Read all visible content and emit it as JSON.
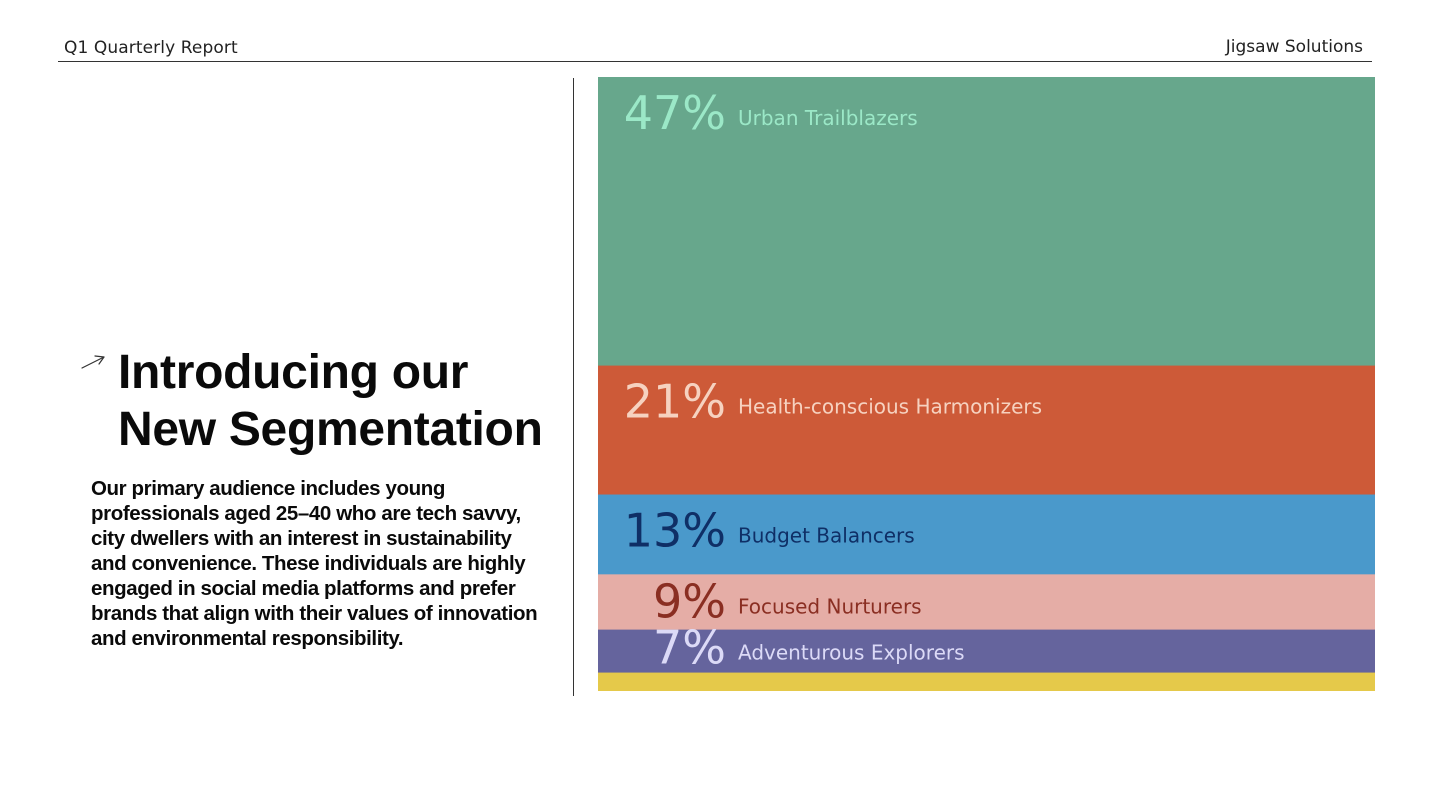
{
  "header": {
    "report_title": "Q1 Quarterly Report",
    "company": "Jigsaw Solutions"
  },
  "intro": {
    "headline_line1": "Introducing our",
    "headline_line2": "New Segmentation",
    "body": "Our primary audience includes young professionals aged 25–40 who are tech savvy, city dwellers with an interest in sustainability and convenience. These individuals are highly engaged in social media platforms and prefer brands that align with their values of innovation and environmental responsibility.",
    "icon": "arrow-up-right-icon"
  },
  "chart_data": {
    "type": "bar",
    "orientation": "stacked-vertical",
    "unit": "%",
    "segments": [
      {
        "name": "Urban Trailblazers",
        "value": 47,
        "label": "47%",
        "color": "#67a78c",
        "text_color": "#9be8c7"
      },
      {
        "name": "Health-conscious Harmonizers",
        "value": 21,
        "label": "21%",
        "color": "#cd5a38",
        "text_color": "#f6d2c0"
      },
      {
        "name": "Budget Balancers",
        "value": 13,
        "label": "13%",
        "color": "#4a99cb",
        "text_color": "#0f2f66"
      },
      {
        "name": "Focused Nurturers",
        "value": 9,
        "label": "9%",
        "color": "#e5ada6",
        "text_color": "#8a2e22"
      },
      {
        "name": "Adventurous Explorers",
        "value": 7,
        "label": "7%",
        "color": "#65649d",
        "text_color": "#dcdaf7"
      },
      {
        "name": "",
        "value": 3,
        "label": "",
        "color": "#e5c94a",
        "text_color": "#ffffff"
      }
    ],
    "legend": "inline",
    "grid": false
  }
}
